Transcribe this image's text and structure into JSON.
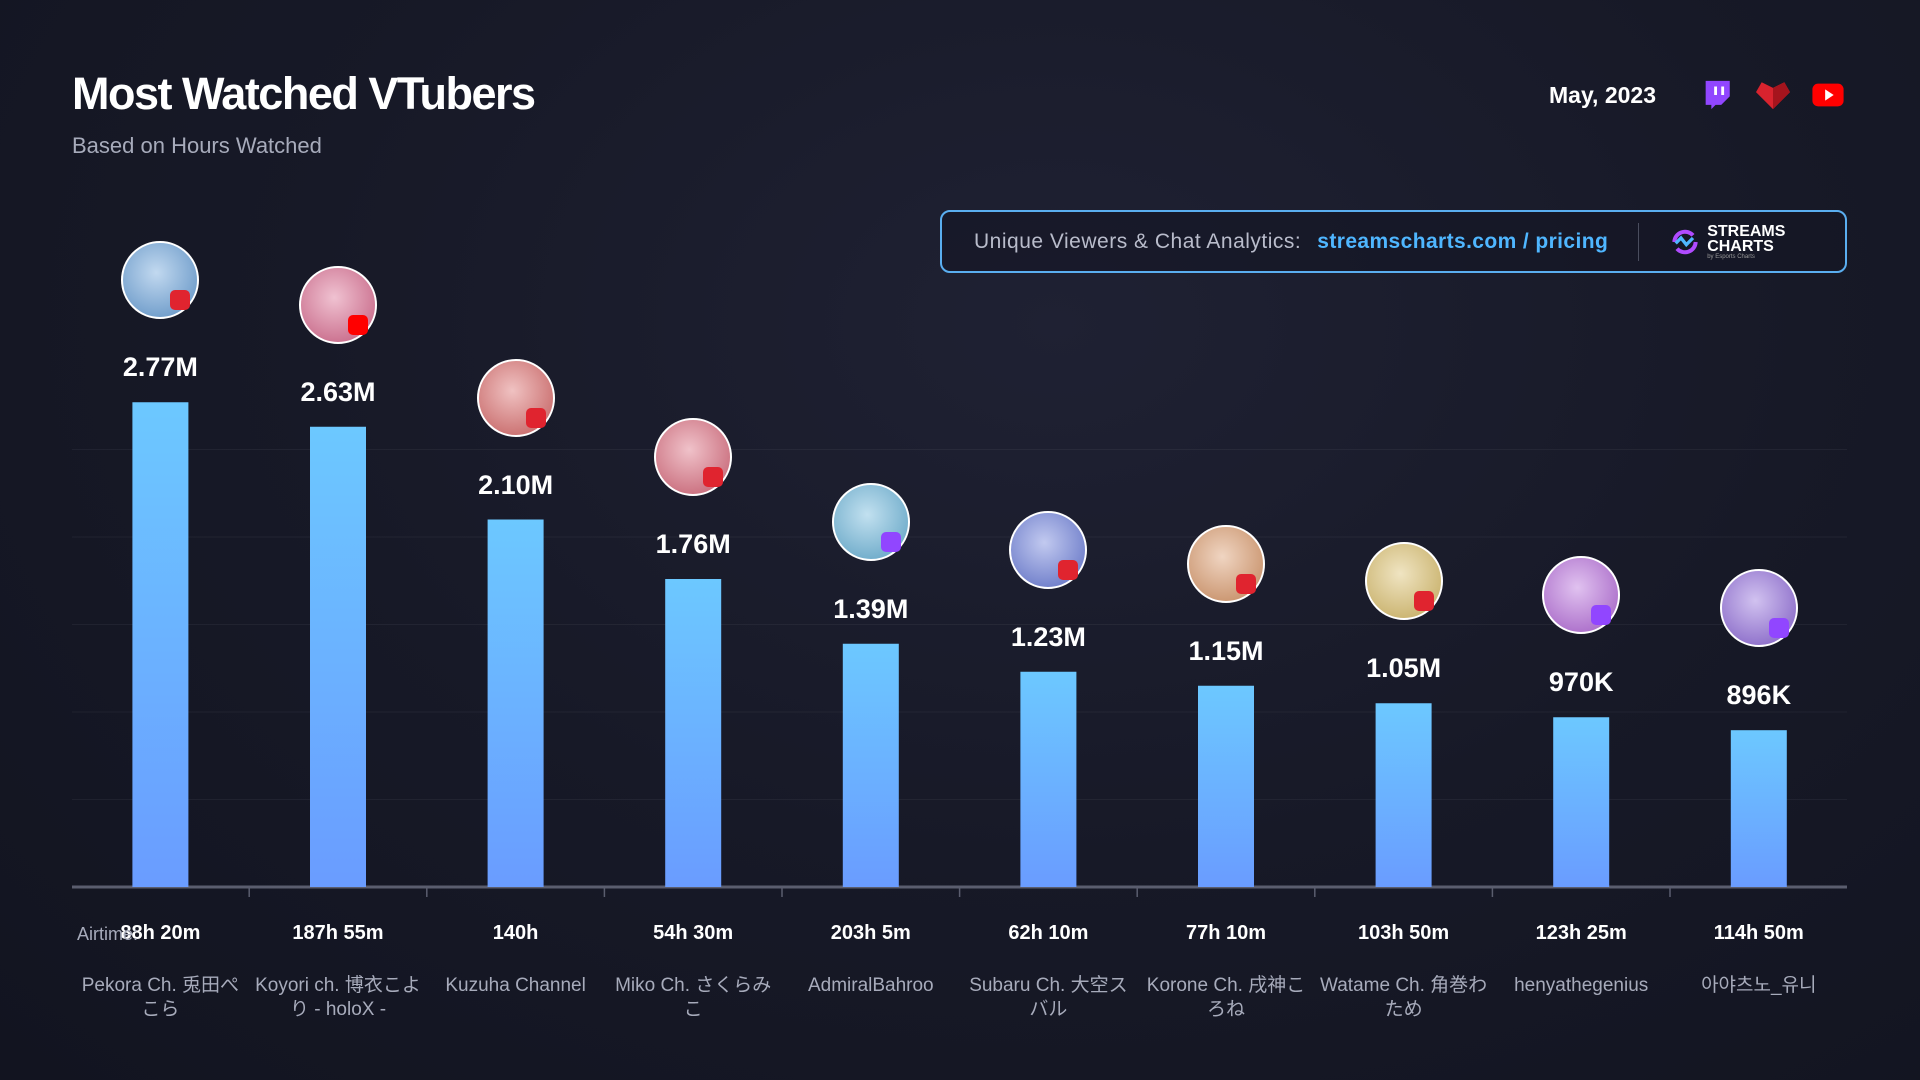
{
  "header": {
    "title": "Most Watched VTubers",
    "subtitle": "Based on Hours Watched",
    "date": "May, 2023",
    "platforms": [
      "twitch-icon",
      "red-heart-platform-icon",
      "youtube-icon"
    ]
  },
  "banner": {
    "label": "Unique Viewers & Chat Analytics:",
    "link": "streamscharts.com / pricing",
    "logo_line1": "STREAMS",
    "logo_line2": "CHARTS",
    "logo_sub": "by Esports Charts"
  },
  "colors": {
    "bar_top": "#6cc8ff",
    "bar_bottom": "#6a9cff",
    "twitch": "#9146ff",
    "youtube": "#ff0000",
    "red_platform": "#e0242f",
    "link": "#4fb6ff"
  },
  "chart_data": {
    "type": "bar",
    "title": "Most Watched VTubers",
    "ylim": [
      0,
      3000000
    ],
    "grid": true,
    "airtime_label": "Airtime:",
    "categories": [
      "Pekora Ch. 兎田ぺこら",
      "Koyori ch. 博衣こより - holoX -",
      "Kuzuha Channel",
      "Miko Ch. さくらみこ",
      "AdmiralBahroo",
      "Subaru Ch. 大空スバル",
      "Korone Ch. 戌神ころね",
      "Watame Ch. 角巻わため",
      "henyathegenius",
      "아야츠노_유니"
    ],
    "values": [
      2770000,
      2630000,
      2100000,
      1760000,
      1390000,
      1230000,
      1150000,
      1050000,
      970000,
      896000
    ],
    "value_labels": [
      "2.77M",
      "2.63M",
      "2.10M",
      "1.76M",
      "1.39M",
      "1.23M",
      "1.15M",
      "1.05M",
      "970K",
      "896K"
    ],
    "airtime": [
      "88h 20m",
      "187h 55m",
      "140h",
      "54h 30m",
      "203h 5m",
      "62h 10m",
      "77h 10m",
      "103h 50m",
      "123h 25m",
      "114h 50m"
    ],
    "platform": [
      "red",
      "youtube",
      "red",
      "red",
      "twitch",
      "red",
      "red",
      "red",
      "twitch",
      "twitch"
    ]
  }
}
